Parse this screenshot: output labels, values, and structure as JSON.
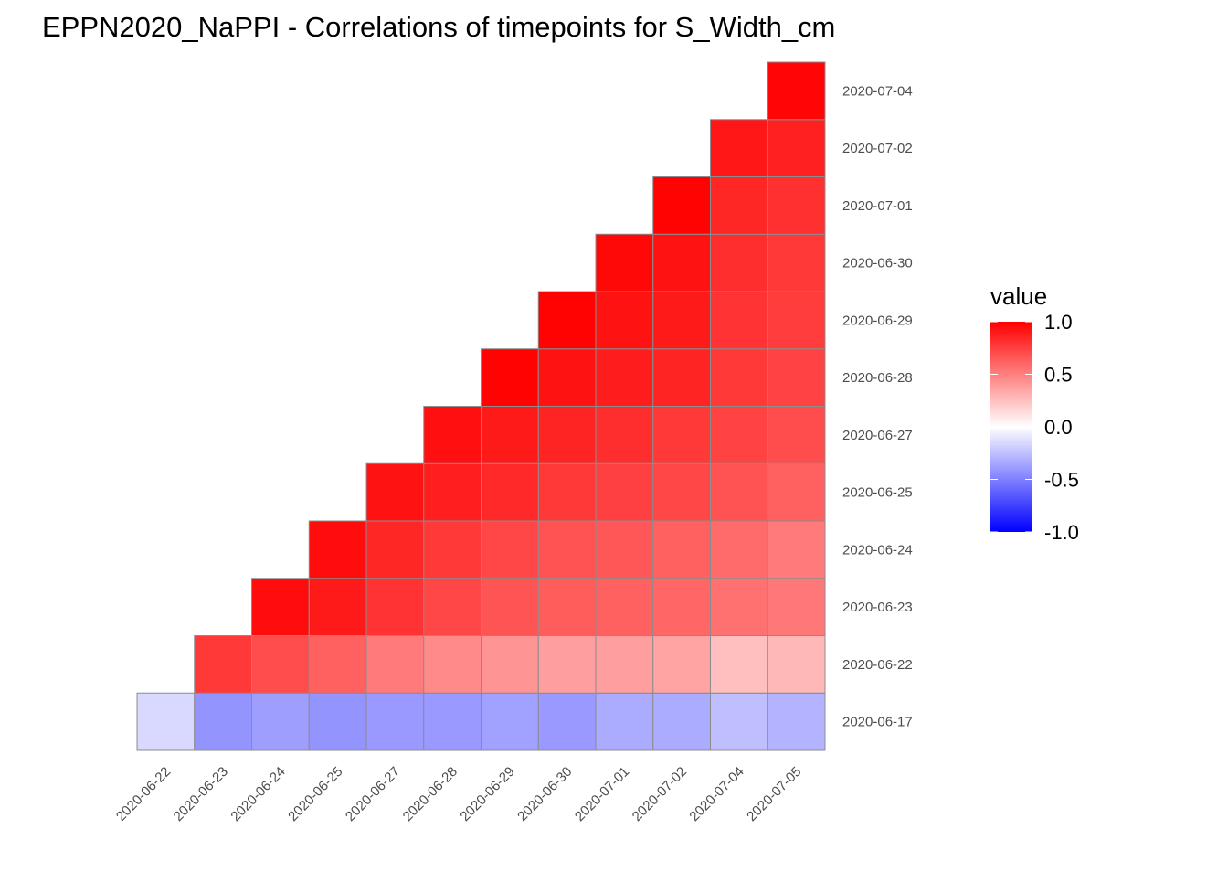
{
  "chart_data": {
    "type": "heatmap",
    "title": "EPPN2020_NaPPI - Correlations of timepoints for S_Width_cm",
    "x_categories": [
      "2020-06-22",
      "2020-06-23",
      "2020-06-24",
      "2020-06-25",
      "2020-06-27",
      "2020-06-28",
      "2020-06-29",
      "2020-06-30",
      "2020-07-01",
      "2020-07-02",
      "2020-07-04",
      "2020-07-05"
    ],
    "y_categories": [
      "2020-06-17",
      "2020-06-22",
      "2020-06-23",
      "2020-06-24",
      "2020-06-25",
      "2020-06-27",
      "2020-06-28",
      "2020-06-29",
      "2020-06-30",
      "2020-07-01",
      "2020-07-02",
      "2020-07-04"
    ],
    "values": [
      [
        -0.15,
        -0.42,
        -0.38,
        -0.42,
        -0.4,
        -0.4,
        -0.37,
        -0.4,
        -0.33,
        -0.33,
        -0.25,
        -0.3
      ],
      [
        null,
        0.78,
        0.7,
        0.62,
        0.52,
        0.46,
        0.42,
        0.38,
        0.38,
        0.36,
        0.25,
        0.28
      ],
      [
        null,
        null,
        0.95,
        0.9,
        0.8,
        0.72,
        0.67,
        0.64,
        0.62,
        0.6,
        0.56,
        0.53
      ],
      [
        null,
        null,
        null,
        0.95,
        0.85,
        0.78,
        0.72,
        0.68,
        0.66,
        0.62,
        0.58,
        0.52
      ],
      [
        null,
        null,
        null,
        null,
        0.93,
        0.88,
        0.84,
        0.78,
        0.75,
        0.72,
        0.68,
        0.62
      ],
      [
        null,
        null,
        null,
        null,
        null,
        0.94,
        0.9,
        0.86,
        0.82,
        0.78,
        0.74,
        0.7
      ],
      [
        null,
        null,
        null,
        null,
        null,
        null,
        0.99,
        0.93,
        0.89,
        0.86,
        0.78,
        0.74
      ],
      [
        null,
        null,
        null,
        null,
        null,
        null,
        null,
        0.99,
        0.93,
        0.9,
        0.8,
        0.76
      ],
      [
        null,
        null,
        null,
        null,
        null,
        null,
        null,
        null,
        0.97,
        0.93,
        0.82,
        0.78
      ],
      [
        null,
        null,
        null,
        null,
        null,
        null,
        null,
        null,
        null,
        0.99,
        0.85,
        0.81
      ],
      [
        null,
        null,
        null,
        null,
        null,
        null,
        null,
        null,
        null,
        null,
        0.91,
        0.87
      ],
      [
        null,
        null,
        null,
        null,
        null,
        null,
        null,
        null,
        null,
        null,
        null,
        0.98
      ]
    ],
    "legend": {
      "title": "value",
      "ticks": [
        "1.0",
        "0.5",
        "0.0",
        "-0.5",
        "-1.0"
      ],
      "tick_values": [
        1.0,
        0.5,
        0.0,
        -0.5,
        -1.0
      ],
      "range": [
        -1.0,
        1.0
      ],
      "low_color": "#0000ff",
      "mid_color": "#ffffff",
      "high_color": "#ff0000",
      "placement": "right"
    },
    "grid": false
  }
}
